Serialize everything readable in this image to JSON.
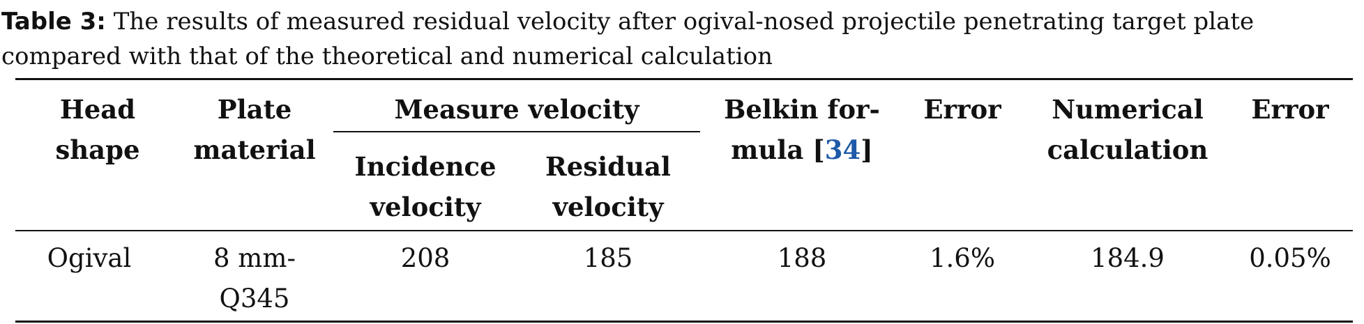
{
  "caption": {
    "label": "Table 3:",
    "text": "The results of measured residual velocity after ogival-nosed projectile penetrating target plate compared with that of the theoretical and numerical calculation"
  },
  "table": {
    "headers": {
      "head_shape": [
        "Head",
        "shape"
      ],
      "plate_material": [
        "Plate",
        "material"
      ],
      "measure_velocity": "Measure velocity",
      "incidence_velocity": [
        "Incidence",
        "velocity"
      ],
      "residual_velocity": [
        "Residual",
        "velocity"
      ],
      "belkin_formula": {
        "line1": "Belkin for-",
        "line2_prefix": "mula [",
        "ref": "34",
        "line2_suffix": "]"
      },
      "error_1": "Error",
      "numerical_calculation": [
        "Numerical",
        "calculation"
      ],
      "error_2": "Error"
    },
    "rows": [
      {
        "head_shape": "Ogival",
        "plate_material": [
          "8 mm-",
          "Q345"
        ],
        "incidence_velocity": "208",
        "residual_velocity": "185",
        "belkin_formula": "188",
        "error_1": "1.6%",
        "numerical_calculation": "184.9",
        "error_2": "0.05%"
      }
    ]
  }
}
